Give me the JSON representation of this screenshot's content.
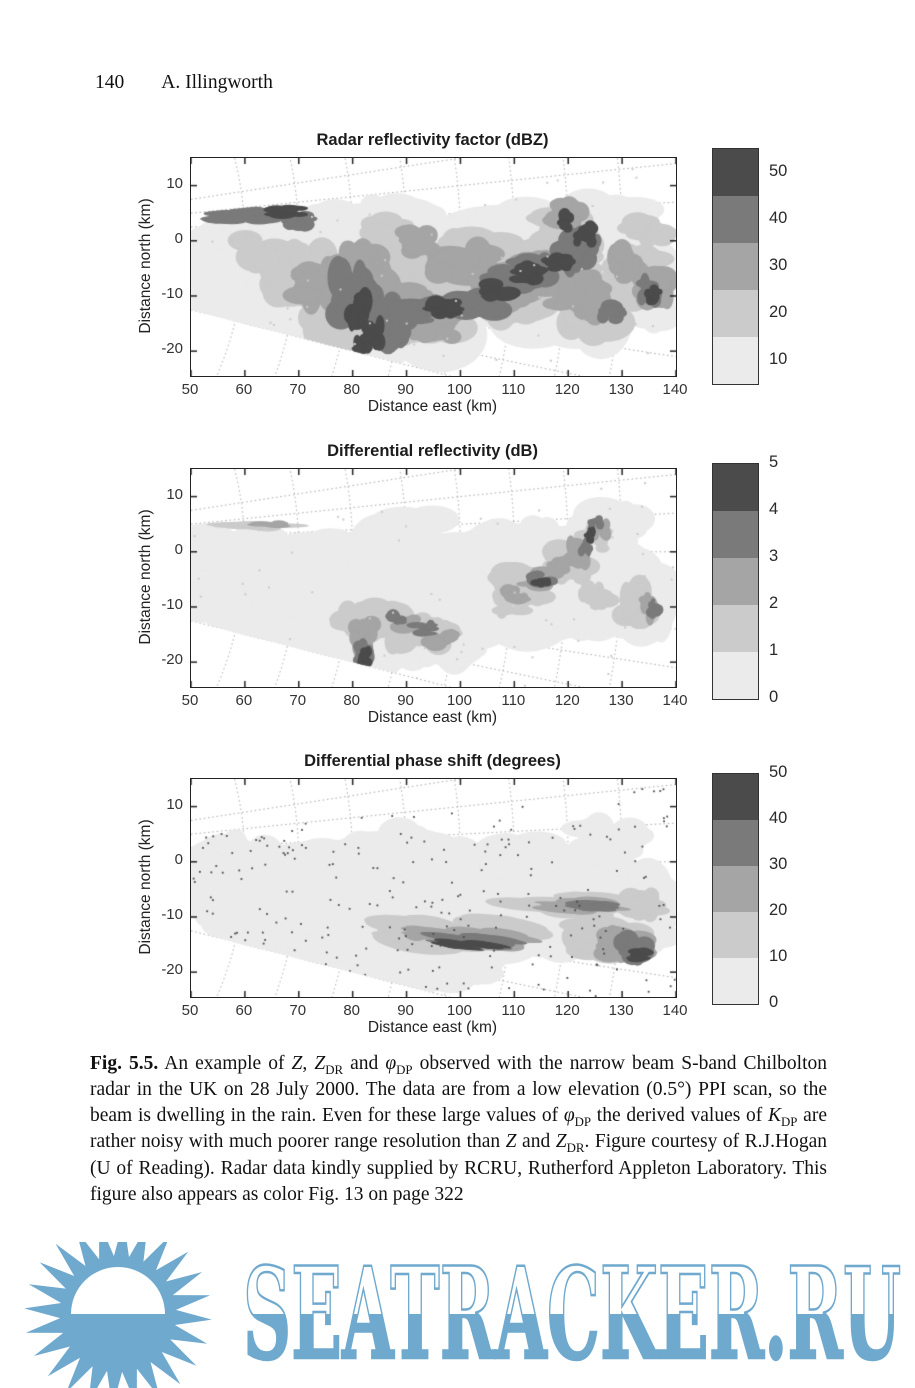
{
  "header": {
    "page_number": "140",
    "author": "A. Illingworth"
  },
  "palette": [
    "#ebebeb",
    "#cbcbcb",
    "#a5a5a5",
    "#7a7a7a",
    "#4b4b4b"
  ],
  "figures": [
    {
      "title": "Radar reflectivity factor (dBZ)",
      "xlabel": "Distance east (km)",
      "ylabel": "Distance north (km)",
      "x_ticks": [
        50,
        60,
        70,
        80,
        90,
        100,
        110,
        120,
        130,
        140
      ],
      "y_ticks": [
        10,
        0,
        -10,
        -20
      ],
      "xlim": [
        50,
        140
      ],
      "ylim": [
        -24.5,
        15
      ],
      "colorbar": {
        "ticks": [
          50,
          40,
          30,
          20,
          10
        ],
        "mode": "center"
      },
      "field": {
        "seed": 11,
        "wedge": [
          [
            50,
            5
          ],
          [
            140,
            14
          ],
          [
            140,
            -24.5
          ],
          [
            98,
            -24.5
          ],
          [
            50,
            -12.5
          ]
        ],
        "rays": [
          0.15,
          0.1,
          0.05,
          0,
          -0.05,
          -0.1,
          -0.15,
          -0.2,
          -0.25
        ],
        "arcs": [
          60,
          70,
          80,
          90,
          100,
          110,
          120,
          130
        ],
        "blobs": [
          [
            58,
            -3,
            10,
            7,
            1
          ],
          [
            60,
            -13,
            11,
            7,
            1
          ],
          [
            75,
            -5,
            14,
            11,
            1
          ],
          [
            90,
            -10,
            16,
            12,
            1
          ],
          [
            105,
            -5,
            15,
            10,
            1
          ],
          [
            118,
            -8,
            14,
            11,
            1
          ],
          [
            132,
            -8,
            9,
            9,
            1
          ],
          [
            128,
            4,
            8,
            5,
            1
          ],
          [
            88,
            2,
            10,
            6,
            1
          ],
          [
            110,
            2,
            10,
            5,
            1
          ],
          [
            55,
            -8,
            6,
            6,
            1
          ],
          [
            70,
            -6,
            8,
            6,
            2
          ],
          [
            78,
            -12,
            9,
            7,
            2
          ],
          [
            88,
            -6,
            9,
            7,
            2
          ],
          [
            95,
            -12,
            10,
            7,
            2
          ],
          [
            103,
            -3,
            8,
            5,
            2
          ],
          [
            110,
            -10,
            9,
            6,
            2
          ],
          [
            118,
            -4,
            9,
            6,
            2
          ],
          [
            124,
            -12,
            8,
            6,
            2
          ],
          [
            133,
            -6,
            6,
            6,
            2
          ],
          [
            86,
            1,
            6,
            4,
            2
          ],
          [
            119,
            2,
            6,
            4,
            2
          ],
          [
            135,
            2,
            5,
            3,
            2
          ],
          [
            62,
            -2,
            5,
            4,
            2
          ],
          [
            74,
            -8,
            6,
            5,
            3
          ],
          [
            82,
            -5,
            6,
            6,
            3
          ],
          [
            90,
            -12,
            8,
            5,
            3
          ],
          [
            100,
            -4,
            7,
            4,
            3
          ],
          [
            108,
            -8,
            7,
            5,
            3
          ],
          [
            115,
            -6,
            6,
            4,
            3
          ],
          [
            122,
            -10,
            6,
            5,
            3
          ],
          [
            131,
            -4,
            4,
            4,
            3
          ],
          [
            95,
            -15,
            6,
            4,
            3
          ],
          [
            136,
            -8,
            4,
            4,
            3
          ],
          [
            120,
            5,
            4,
            3,
            3
          ],
          [
            92,
            0,
            4,
            3,
            3
          ],
          [
            84,
            -10,
            5,
            4,
            3
          ],
          [
            80,
            -10,
            5,
            6,
            4
          ],
          [
            85,
            -14,
            4,
            4,
            4
          ],
          [
            92,
            -13,
            6,
            3,
            4
          ],
          [
            103,
            -11,
            6,
            3,
            4
          ],
          [
            110,
            -7,
            6,
            3,
            4
          ],
          [
            114,
            -5,
            5,
            3,
            4
          ],
          [
            121,
            -2,
            4,
            4,
            4
          ],
          [
            124,
            0,
            3,
            3,
            4
          ],
          [
            135,
            -9,
            3,
            3,
            4
          ],
          [
            60,
            4.5,
            9,
            1.6,
            4
          ],
          [
            70,
            3.5,
            3,
            2,
            4
          ],
          [
            128,
            -13,
            3,
            2,
            4
          ],
          [
            88,
            -17,
            3,
            3,
            4
          ],
          [
            81,
            -12,
            3,
            4,
            5
          ],
          [
            84,
            -17,
            2.5,
            3,
            5
          ],
          [
            97,
            -12,
            4,
            2,
            5
          ],
          [
            107,
            -9,
            4,
            2,
            5
          ],
          [
            113,
            -6,
            4,
            2,
            5
          ],
          [
            118,
            -4,
            3,
            2,
            5
          ],
          [
            123,
            1,
            2.5,
            2.5,
            5
          ],
          [
            68,
            5.2,
            4,
            1.3,
            5
          ],
          [
            120,
            3.5,
            2,
            2,
            5
          ],
          [
            136,
            -10,
            2,
            2,
            5
          ],
          [
            82,
            -19,
            2,
            2,
            5
          ]
        ],
        "speckle": [
          60,
          2,
          2
        ]
      }
    },
    {
      "title": "Differential reflectivity (dB)",
      "xlabel": "Distance east (km)",
      "ylabel": "Distance north (km)",
      "x_ticks": [
        50,
        60,
        70,
        80,
        90,
        100,
        110,
        120,
        130,
        140
      ],
      "y_ticks": [
        10,
        0,
        -10,
        -20
      ],
      "xlim": [
        50,
        140
      ],
      "ylim": [
        -24.5,
        15
      ],
      "colorbar": {
        "ticks": [
          5,
          4,
          3,
          2,
          1,
          0
        ],
        "mode": "edge"
      },
      "field": {
        "seed": 23,
        "wedge": [
          [
            50,
            5
          ],
          [
            140,
            14
          ],
          [
            140,
            -24.5
          ],
          [
            98,
            -24.5
          ],
          [
            50,
            -12.5
          ]
        ],
        "rays": [
          0.15,
          0.1,
          0.05,
          0,
          -0.05,
          -0.1,
          -0.15,
          -0.2,
          -0.25
        ],
        "arcs": [
          60,
          70,
          80,
          90,
          100,
          110,
          120,
          130
        ],
        "blobs": [
          [
            58,
            -3,
            10,
            8,
            1
          ],
          [
            62,
            -14,
            10,
            6,
            1
          ],
          [
            78,
            -6,
            14,
            11,
            1
          ],
          [
            92,
            -10,
            15,
            11,
            1
          ],
          [
            107,
            -6,
            14,
            10,
            1
          ],
          [
            120,
            -6,
            13,
            10,
            1
          ],
          [
            133,
            -8,
            8,
            8,
            1
          ],
          [
            128,
            4,
            8,
            5,
            1
          ],
          [
            90,
            3,
            9,
            5,
            1
          ],
          [
            112,
            2,
            9,
            4,
            1
          ],
          [
            75,
            -16,
            10,
            5,
            1
          ],
          [
            55,
            -8,
            6,
            5,
            1
          ],
          [
            100,
            -16,
            8,
            4,
            1
          ],
          [
            85,
            -12,
            6,
            4,
            2
          ],
          [
            90,
            -14,
            6,
            4,
            2
          ],
          [
            95,
            -15,
            5,
            3,
            2
          ],
          [
            112,
            -6,
            6,
            4,
            2
          ],
          [
            120,
            -2,
            5,
            4,
            2
          ],
          [
            124,
            2,
            4,
            3,
            2
          ],
          [
            133,
            -10,
            4,
            5,
            2
          ],
          [
            125,
            -8,
            4,
            3,
            2
          ],
          [
            80,
            -13,
            4,
            4,
            2
          ],
          [
            110,
            -9,
            4,
            3,
            2
          ],
          [
            62,
            4.5,
            8,
            1,
            2
          ],
          [
            82,
            -15,
            3,
            4,
            3
          ],
          [
            91,
            -13,
            4,
            2,
            3
          ],
          [
            96,
            -16,
            4,
            2,
            3
          ],
          [
            114,
            -5,
            4,
            2,
            3
          ],
          [
            122,
            0,
            3,
            3,
            3
          ],
          [
            126,
            4,
            2,
            2,
            3
          ],
          [
            135,
            -10,
            2,
            3,
            3
          ],
          [
            110,
            -8,
            3,
            2,
            3
          ],
          [
            118,
            -3,
            3,
            2,
            3
          ],
          [
            65,
            5,
            4,
            0.7,
            3
          ],
          [
            82,
            -18,
            2,
            3,
            4
          ],
          [
            93,
            -14,
            3,
            1.5,
            4
          ],
          [
            115,
            -5,
            3,
            1.5,
            4
          ],
          [
            123,
            1,
            1.5,
            2,
            4
          ],
          [
            136,
            -10,
            1.5,
            2,
            4
          ],
          [
            125,
            5,
            1.5,
            1.5,
            4
          ],
          [
            88,
            -12,
            2,
            1.5,
            4
          ],
          [
            82,
            -19,
            1.5,
            2,
            5
          ],
          [
            115,
            -5.5,
            2,
            1,
            5
          ],
          [
            124,
            3,
            1,
            1.5,
            5
          ]
        ],
        "speckle": [
          60,
          2,
          2
        ]
      }
    },
    {
      "title": "Differential phase shift (degrees)",
      "xlabel": "Distance east (km)",
      "ylabel": "Distance north (km)",
      "x_ticks": [
        50,
        60,
        70,
        80,
        90,
        100,
        110,
        120,
        130,
        140
      ],
      "y_ticks": [
        10,
        0,
        -10,
        -20
      ],
      "xlim": [
        50,
        140
      ],
      "ylim": [
        -24.5,
        15
      ],
      "colorbar": {
        "ticks": [
          50,
          40,
          30,
          20,
          10,
          0
        ],
        "mode": "edge"
      },
      "field": {
        "seed": 37,
        "wedge": [
          [
            50,
            5
          ],
          [
            140,
            14
          ],
          [
            140,
            -24.5
          ],
          [
            98,
            -24.5
          ],
          [
            50,
            -12.5
          ]
        ],
        "rays": [
          0.15,
          0.1,
          0.05,
          0,
          -0.05,
          -0.1,
          -0.15,
          -0.2,
          -0.25
        ],
        "arcs": [
          60,
          70,
          80,
          90,
          100,
          110,
          120,
          130
        ],
        "blobs": [
          [
            58,
            -3,
            10,
            8,
            1
          ],
          [
            62,
            -14,
            10,
            6,
            1
          ],
          [
            78,
            -6,
            14,
            11,
            1
          ],
          [
            92,
            -11,
            15,
            11,
            1
          ],
          [
            107,
            -7,
            14,
            10,
            1
          ],
          [
            120,
            -7,
            13,
            10,
            1
          ],
          [
            133,
            -9,
            8,
            8,
            1
          ],
          [
            127,
            3,
            8,
            5,
            1
          ],
          [
            90,
            2,
            9,
            5,
            1
          ],
          [
            112,
            1,
            9,
            4,
            1
          ],
          [
            75,
            -17,
            10,
            5,
            1
          ],
          [
            100,
            -18,
            9,
            5,
            1
          ],
          [
            55,
            -8,
            6,
            5,
            1
          ],
          [
            120,
            -7.5,
            13,
            2.2,
            2,
            0.08
          ],
          [
            100,
            -13,
            15,
            3.2,
            2,
            0.15
          ],
          [
            128,
            -13,
            8,
            5,
            2
          ],
          [
            90,
            -12,
            7,
            2.5,
            2,
            0.15
          ],
          [
            134,
            -8,
            5,
            3,
            2
          ],
          [
            103,
            -14,
            12,
            2,
            3,
            0.15
          ],
          [
            122,
            -8,
            10,
            1.4,
            3,
            0.08
          ],
          [
            130,
            -15,
            6,
            4,
            3
          ],
          [
            95,
            -13,
            6,
            1.5,
            3,
            0.15
          ],
          [
            104,
            -14.5,
            10,
            1.3,
            4,
            0.15
          ],
          [
            132,
            -16,
            4,
            3,
            4
          ],
          [
            125,
            -8,
            7,
            0.9,
            4,
            0.08
          ],
          [
            103,
            -15,
            8,
            0.8,
            5,
            0.15
          ],
          [
            133,
            -17,
            3,
            1.4,
            5
          ]
        ],
        "speckle": [
          230,
          5,
          1.8
        ]
      }
    }
  ],
  "caption": {
    "runs": [
      {
        "b": "Fig. 5.5."
      },
      {
        "r": " An example of "
      },
      {
        "i": "Z"
      },
      {
        "r": ", "
      },
      {
        "i": "Z"
      },
      {
        "sub": "DR"
      },
      {
        "r": " and "
      },
      {
        "i": "φ"
      },
      {
        "sub": "DP"
      },
      {
        "r": " observed with the narrow beam S-band Chilbolton radar in the UK on 28 July 2000. The data are from a low elevation (0.5°) PPI scan, so the beam is dwelling in the rain. Even for these large values of "
      },
      {
        "i": "φ"
      },
      {
        "sub": "DP"
      },
      {
        "r": " the derived values of "
      },
      {
        "i": "K"
      },
      {
        "sub": "DP"
      },
      {
        "r": " are rather noisy with much poorer range resolution than "
      },
      {
        "i": "Z"
      },
      {
        "r": " and "
      },
      {
        "i": "Z"
      },
      {
        "sub": "DR"
      },
      {
        "r": ". Figure courtesy of R.J.Hogan (U of Reading). Radar data kindly supplied by RCRU, Rutherford Appleton Laboratory. This figure also appears as color Fig. 13 on page 322"
      }
    ]
  },
  "watermark": {
    "text": "SEATRACKER.RU",
    "color": "#6fa9ce",
    "icon": "sun-over-sea-icon"
  }
}
